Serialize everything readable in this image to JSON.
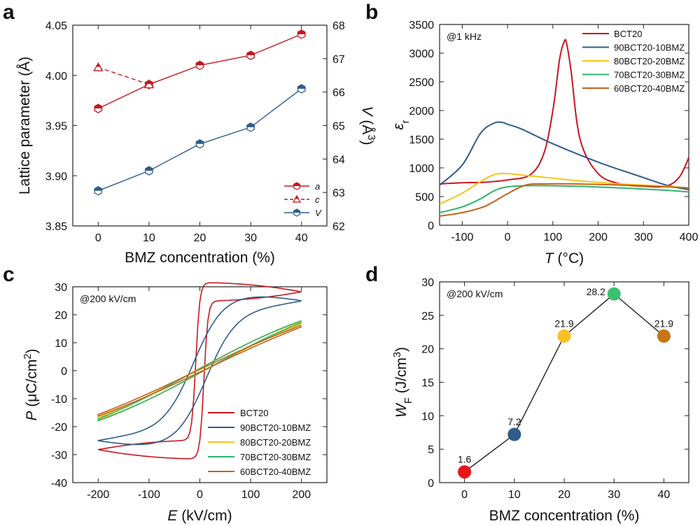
{
  "colors": {
    "red": "#c8161d",
    "blue": "#2f5c8a",
    "yellow": "#f5c518",
    "green": "#2fb36b",
    "orange": "#c0631a",
    "dot_red": "#e8141b",
    "dot_blue": "#2f5c8a",
    "dot_yellow": "#fbbf24",
    "dot_green": "#3cc06f",
    "dot_orange": "#c77516"
  },
  "chart_data": [
    {
      "panel": "a",
      "type": "line",
      "xlabel": "BMZ concentration (%)",
      "ylabel": "Lattice parameter (Å)",
      "y2label_main": "V",
      "y2label_unit": "(Å",
      "y2label_sup": "3",
      "y2label_end": ")",
      "xlim": [
        -5,
        45
      ],
      "ylim": [
        3.85,
        4.05
      ],
      "y2lim": [
        62,
        68
      ],
      "x_ticks": [
        0,
        10,
        20,
        30,
        40
      ],
      "y_ticks": [
        3.85,
        3.9,
        3.95,
        4.0,
        4.05
      ],
      "y_tick_labels": [
        "3.85",
        "3.90",
        "3.95",
        "4.00",
        "4.05"
      ],
      "y2_ticks": [
        62,
        63,
        64,
        65,
        66,
        67,
        68
      ],
      "series": [
        {
          "name": "a",
          "axis": "left",
          "x": [
            0,
            10,
            20,
            30,
            40
          ],
          "y": [
            3.967,
            3.991,
            4.01,
            4.02,
            4.041
          ],
          "color": "red",
          "marker": "hexagon"
        },
        {
          "name": "c",
          "axis": "left",
          "x": [
            0,
            10
          ],
          "y": [
            4.008,
            3.991
          ],
          "color": "red",
          "marker": "triangle",
          "dashed": true
        },
        {
          "name": "V",
          "axis": "right",
          "x": [
            0,
            10,
            20,
            30,
            40
          ],
          "y": [
            63.05,
            63.65,
            64.45,
            64.95,
            66.1
          ],
          "color": "blue",
          "marker": "hexagon"
        }
      ]
    },
    {
      "panel": "b",
      "type": "line",
      "annotation": "@1 kHz",
      "xlabel_main": "T",
      "xlabel_unit": "(°C)",
      "ylabel_main": "ε",
      "ylabel_sub": "r",
      "xlim": [
        -150,
        400
      ],
      "ylim": [
        0,
        3500
      ],
      "x_ticks": [
        -100,
        0,
        100,
        200,
        300,
        400
      ],
      "y_ticks": [
        0,
        500,
        1000,
        1500,
        2000,
        2500,
        3000,
        3500
      ],
      "series": [
        {
          "name": "BCT20",
          "color": "red",
          "x": [
            -150,
            -100,
            -50,
            0,
            50,
            80,
            100,
            115,
            125,
            130,
            140,
            160,
            200,
            250,
            300,
            350,
            380,
            400
          ],
          "y": [
            720,
            740,
            750,
            790,
            880,
            1250,
            2000,
            2900,
            3200,
            3180,
            2700,
            1500,
            900,
            720,
            680,
            680,
            850,
            1180
          ]
        },
        {
          "name": "90BCT20-10BMZ",
          "color": "blue",
          "x": [
            -150,
            -100,
            -60,
            -30,
            -10,
            0,
            30,
            100,
            200,
            300,
            350,
            400
          ],
          "y": [
            700,
            1050,
            1600,
            1780,
            1790,
            1760,
            1680,
            1420,
            1100,
            830,
            700,
            620
          ]
        },
        {
          "name": "80BCT20-20BMZ",
          "color": "yellow",
          "x": [
            -150,
            -100,
            -60,
            -30,
            0,
            50,
            150,
            250,
            350,
            400
          ],
          "y": [
            370,
            560,
            760,
            880,
            900,
            860,
            780,
            720,
            680,
            650
          ]
        },
        {
          "name": "70BCT20-30BMZ",
          "color": "green",
          "x": [
            -150,
            -100,
            -60,
            -30,
            0,
            50,
            150,
            250,
            350,
            400
          ],
          "y": [
            220,
            320,
            460,
            600,
            670,
            690,
            680,
            650,
            610,
            580
          ]
        },
        {
          "name": "60BCT20-40BMZ",
          "color": "orange",
          "x": [
            -150,
            -100,
            -50,
            0,
            40,
            80,
            150,
            250,
            350,
            400
          ],
          "y": [
            160,
            220,
            330,
            550,
            700,
            720,
            720,
            700,
            670,
            650
          ]
        }
      ]
    },
    {
      "panel": "c",
      "type": "line",
      "annotation": "@200 kV/cm",
      "xlabel_main": "E",
      "xlabel_unit": "(kV/cm)",
      "ylabel_main": "P",
      "ylabel_unit": "(μC/cm",
      "ylabel_sup": "2",
      "ylabel_end": ")",
      "xlim": [
        -250,
        250
      ],
      "ylim": [
        -40,
        30
      ],
      "x_ticks": [
        -200,
        -100,
        0,
        100,
        200
      ],
      "y_ticks": [
        -40,
        -30,
        -20,
        -10,
        0,
        10,
        20,
        30
      ],
      "series": [
        {
          "name": "BCT20",
          "color": "red",
          "Pmax": 28.2,
          "Pr": 12.5,
          "Ec": 8,
          "sharp": 8,
          "loop": 22
        },
        {
          "name": "90BCT20-10BMZ",
          "color": "blue",
          "Pmax": 25.0,
          "Pr": 3.5,
          "Ec": 12,
          "sharp": 60,
          "loop": 20
        },
        {
          "name": "80BCT20-20BMZ",
          "color": "yellow",
          "Pmax": 17.5,
          "Pr": 1.0,
          "Ec": 6,
          "sharp": 300,
          "loop": 2
        },
        {
          "name": "70BCT20-30BMZ",
          "color": "green",
          "Pmax": 17.9,
          "Pr": 0.8,
          "Ec": 5,
          "sharp": 320,
          "loop": 1.5
        },
        {
          "name": "60BCT20-40BMZ",
          "color": "orange",
          "Pmax": 16.2,
          "Pr": 0.5,
          "Ec": 4,
          "sharp": 400,
          "loop": 0.8
        }
      ]
    },
    {
      "panel": "d",
      "type": "scatter",
      "annotation": "@200 kV/cm",
      "xlabel": "BMZ concentration (%)",
      "ylabel_main": "W",
      "ylabel_sub": "F",
      "ylabel_unit": "(J/cm",
      "ylabel_sup": "3",
      "ylabel_end": ")",
      "xlim": [
        -5,
        45
      ],
      "ylim": [
        0,
        30
      ],
      "x_ticks": [
        0,
        10,
        20,
        30,
        40
      ],
      "y_ticks": [
        0,
        5,
        10,
        15,
        20,
        25,
        30
      ],
      "x": [
        0,
        10,
        20,
        30,
        40
      ],
      "y": [
        1.6,
        7.2,
        21.9,
        28.2,
        21.9
      ],
      "labels": [
        "1.6",
        "7.2",
        "21.9",
        "28.2",
        "21.9"
      ],
      "point_colors": [
        "dot_red",
        "dot_blue",
        "dot_yellow",
        "dot_green",
        "dot_orange"
      ]
    }
  ],
  "panels": {
    "a": "a",
    "b": "b",
    "c": "c",
    "d": "d"
  }
}
